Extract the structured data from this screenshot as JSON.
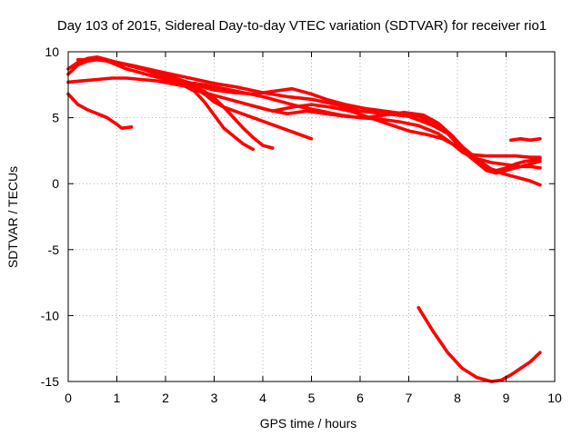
{
  "chart_data": {
    "type": "line",
    "title": "Day 103 of 2015, Sidereal Day-to-day VTEC variation (SDTVAR) for receiver rio1",
    "xlabel": "GPS time / hours",
    "ylabel": "SDTVAR / TECUs",
    "xlim": [
      0,
      10
    ],
    "ylim": [
      -15,
      10
    ],
    "xticks": [
      "0",
      "1",
      "2",
      "3",
      "4",
      "5",
      "6",
      "7",
      "8",
      "9",
      "10"
    ],
    "yticks": [
      "-15",
      "-10",
      "-5",
      "0",
      "5",
      "10"
    ],
    "grid": true,
    "color": "#ff0000",
    "series": [
      {
        "name": "s1",
        "x": [
          0.0,
          0.2,
          0.4,
          0.6,
          0.8,
          1.0,
          1.1,
          1.3
        ],
        "y": [
          6.8,
          6.0,
          5.6,
          5.3,
          5.0,
          4.5,
          4.2,
          4.3
        ]
      },
      {
        "name": "s2",
        "x": [
          0.0,
          0.3,
          0.6,
          0.9,
          1.2,
          1.5,
          1.8,
          2.1,
          2.4,
          2.6,
          2.8,
          3.0,
          3.2,
          3.5,
          3.8,
          4.1,
          4.4,
          4.7,
          5.0
        ],
        "y": [
          7.7,
          7.8,
          7.9,
          8.0,
          8.0,
          7.9,
          7.8,
          7.6,
          7.4,
          7.2,
          6.8,
          6.2,
          5.8,
          5.4,
          5.0,
          4.6,
          4.2,
          3.8,
          3.4
        ]
      },
      {
        "name": "s3",
        "x": [
          0.0,
          0.2,
          0.4,
          0.6,
          0.8,
          1.0,
          1.2,
          1.5,
          1.8,
          2.1,
          2.4,
          2.6,
          2.8,
          3.0,
          3.2,
          3.4,
          3.6,
          3.8
        ],
        "y": [
          8.3,
          9.0,
          9.3,
          9.4,
          9.3,
          9.0,
          8.7,
          8.4,
          8.1,
          7.8,
          7.4,
          7.0,
          6.2,
          5.2,
          4.2,
          3.6,
          3.0,
          2.6
        ]
      },
      {
        "name": "s4",
        "x": [
          0.0,
          0.2,
          0.4,
          0.6,
          0.8,
          1.0,
          1.3,
          1.6,
          1.9,
          2.2,
          2.5,
          2.8,
          3.0,
          3.2,
          3.4,
          3.6,
          3.8,
          4.0,
          4.2
        ],
        "y": [
          8.7,
          9.2,
          9.5,
          9.6,
          9.4,
          9.2,
          8.9,
          8.6,
          8.2,
          7.9,
          7.5,
          7.0,
          6.5,
          5.8,
          5.0,
          4.2,
          3.5,
          2.9,
          2.7
        ]
      },
      {
        "name": "s5",
        "x": [
          0.2,
          0.6,
          1.0,
          1.4,
          1.8,
          2.2,
          2.6,
          3.0,
          3.4,
          3.8,
          4.2,
          4.6,
          5.0,
          5.3,
          5.7,
          6.1,
          6.5,
          6.9,
          7.2,
          7.5,
          7.8,
          8.0,
          8.2,
          8.4,
          8.6,
          8.8,
          9.0,
          9.2,
          9.4,
          9.6,
          9.7
        ],
        "y": [
          9.4,
          9.4,
          9.2,
          8.9,
          8.5,
          8.0,
          7.5,
          7.1,
          6.9,
          6.8,
          7.0,
          7.2,
          6.8,
          6.4,
          6.0,
          5.7,
          5.5,
          5.3,
          5.1,
          4.6,
          3.8,
          3.0,
          2.2,
          1.6,
          1.2,
          1.0,
          1.2,
          1.5,
          1.7,
          1.8,
          1.9
        ]
      },
      {
        "name": "s6",
        "x": [
          1.0,
          1.5,
          2.0,
          2.5,
          3.0,
          3.5,
          4.0,
          4.5,
          5.0,
          5.5,
          6.0,
          6.5,
          7.0,
          7.5,
          7.8,
          8.0,
          8.2,
          8.4,
          8.6,
          8.8,
          9.0,
          9.2,
          9.4,
          9.6,
          9.7
        ],
        "y": [
          9.2,
          8.8,
          8.4,
          8.0,
          7.6,
          7.3,
          6.9,
          6.6,
          6.4,
          6.0,
          5.5,
          5.3,
          5.1,
          4.4,
          3.8,
          3.2,
          2.4,
          1.6,
          1.0,
          0.8,
          1.0,
          1.2,
          1.4,
          1.6,
          1.7
        ]
      },
      {
        "name": "s7",
        "x": [
          2.4,
          2.8,
          3.2,
          3.6,
          4.0,
          4.4,
          4.8,
          5.2,
          5.6,
          6.0,
          6.4,
          6.8,
          7.2,
          7.6,
          7.9,
          8.1,
          8.3,
          8.5,
          8.7,
          8.9,
          9.1,
          9.3,
          9.5,
          9.7
        ],
        "y": [
          7.7,
          7.5,
          7.2,
          6.9,
          6.6,
          6.2,
          5.8,
          5.5,
          5.2,
          5.0,
          4.9,
          4.7,
          4.4,
          3.8,
          3.0,
          2.4,
          2.0,
          1.8,
          1.6,
          1.5,
          1.4,
          1.3,
          1.3,
          1.2
        ]
      },
      {
        "name": "s8",
        "x": [
          2.9,
          3.3,
          3.7,
          4.1,
          4.5,
          4.9,
          5.3,
          5.7,
          6.1,
          6.5,
          6.9,
          7.3,
          7.6,
          7.9,
          8.1,
          8.3,
          8.5,
          8.7,
          8.9,
          9.1,
          9.3,
          9.5,
          9.7
        ],
        "y": [
          6.8,
          6.4,
          6.0,
          5.6,
          5.3,
          5.5,
          5.3,
          5.1,
          5.0,
          5.2,
          5.4,
          5.2,
          4.6,
          3.6,
          2.8,
          2.2,
          1.6,
          1.1,
          0.8,
          0.6,
          0.4,
          0.2,
          -0.1
        ]
      },
      {
        "name": "s9",
        "x": [
          4.2,
          4.6,
          5.0,
          5.4,
          5.8,
          6.2,
          6.6,
          7.0,
          7.4,
          7.7,
          8.0,
          8.3,
          8.6,
          8.9,
          9.2,
          9.5,
          9.7
        ],
        "y": [
          5.5,
          5.8,
          6.0,
          5.8,
          5.5,
          5.0,
          4.5,
          4.0,
          3.7,
          3.4,
          2.8,
          2.2,
          2.1,
          2.1,
          2.1,
          2.0,
          2.0
        ]
      },
      {
        "name": "s10",
        "x": [
          9.1,
          9.3,
          9.5,
          9.7
        ],
        "y": [
          3.3,
          3.4,
          3.3,
          3.4
        ]
      },
      {
        "name": "s11",
        "x": [
          7.2,
          7.5,
          7.8,
          8.1,
          8.4,
          8.7,
          8.9,
          9.1,
          9.3,
          9.5,
          9.7
        ],
        "y": [
          -9.4,
          -11.2,
          -12.8,
          -14.0,
          -14.7,
          -15.0,
          -14.9,
          -14.5,
          -14.0,
          -13.5,
          -12.8
        ]
      }
    ]
  }
}
